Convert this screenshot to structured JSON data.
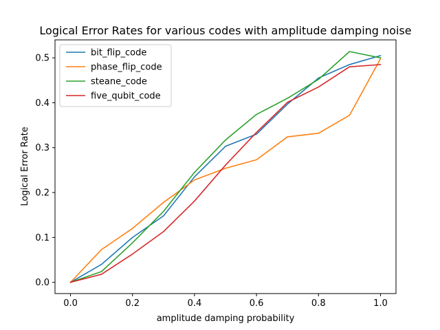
{
  "chart_data": {
    "type": "line",
    "title": "Logical Error Rates for various codes with amplitude damping noise",
    "xlabel": "amplitude damping probability",
    "ylabel": "Logical Error Rate",
    "x": [
      0.0,
      0.1,
      0.2,
      0.3,
      0.4,
      0.5,
      0.6,
      0.7,
      0.8,
      0.9,
      1.0
    ],
    "xlim": [
      -0.05,
      1.05
    ],
    "ylim": [
      -0.025,
      0.54
    ],
    "xticks": [
      0.0,
      0.2,
      0.4,
      0.6,
      0.8,
      1.0
    ],
    "xtick_labels": [
      "0.0",
      "0.2",
      "0.4",
      "0.6",
      "0.8",
      "1.0"
    ],
    "yticks": [
      0.0,
      0.1,
      0.2,
      0.3,
      0.4,
      0.5
    ],
    "ytick_labels": [
      "0.0",
      "0.1",
      "0.2",
      "0.3",
      "0.4",
      "0.5"
    ],
    "grid": false,
    "legend_position": "top-left",
    "series": [
      {
        "name": "bit_flip_code",
        "color": "#1f77b4",
        "values": [
          0.0,
          0.04,
          0.1,
          0.148,
          0.235,
          0.303,
          0.33,
          0.397,
          0.455,
          0.485,
          0.505
        ]
      },
      {
        "name": "phase_flip_code",
        "color": "#ff7f0e",
        "values": [
          0.0,
          0.073,
          0.12,
          0.178,
          0.228,
          0.254,
          0.273,
          0.324,
          0.332,
          0.372,
          0.498
        ]
      },
      {
        "name": "steane_code",
        "color": "#2ca02c",
        "values": [
          0.0,
          0.024,
          0.088,
          0.158,
          0.245,
          0.317,
          0.374,
          0.41,
          0.452,
          0.514,
          0.5
        ]
      },
      {
        "name": "five_qubit_code",
        "color": "#d62728",
        "values": [
          0.0,
          0.018,
          0.063,
          0.113,
          0.181,
          0.261,
          0.334,
          0.401,
          0.435,
          0.48,
          0.485
        ]
      }
    ]
  }
}
